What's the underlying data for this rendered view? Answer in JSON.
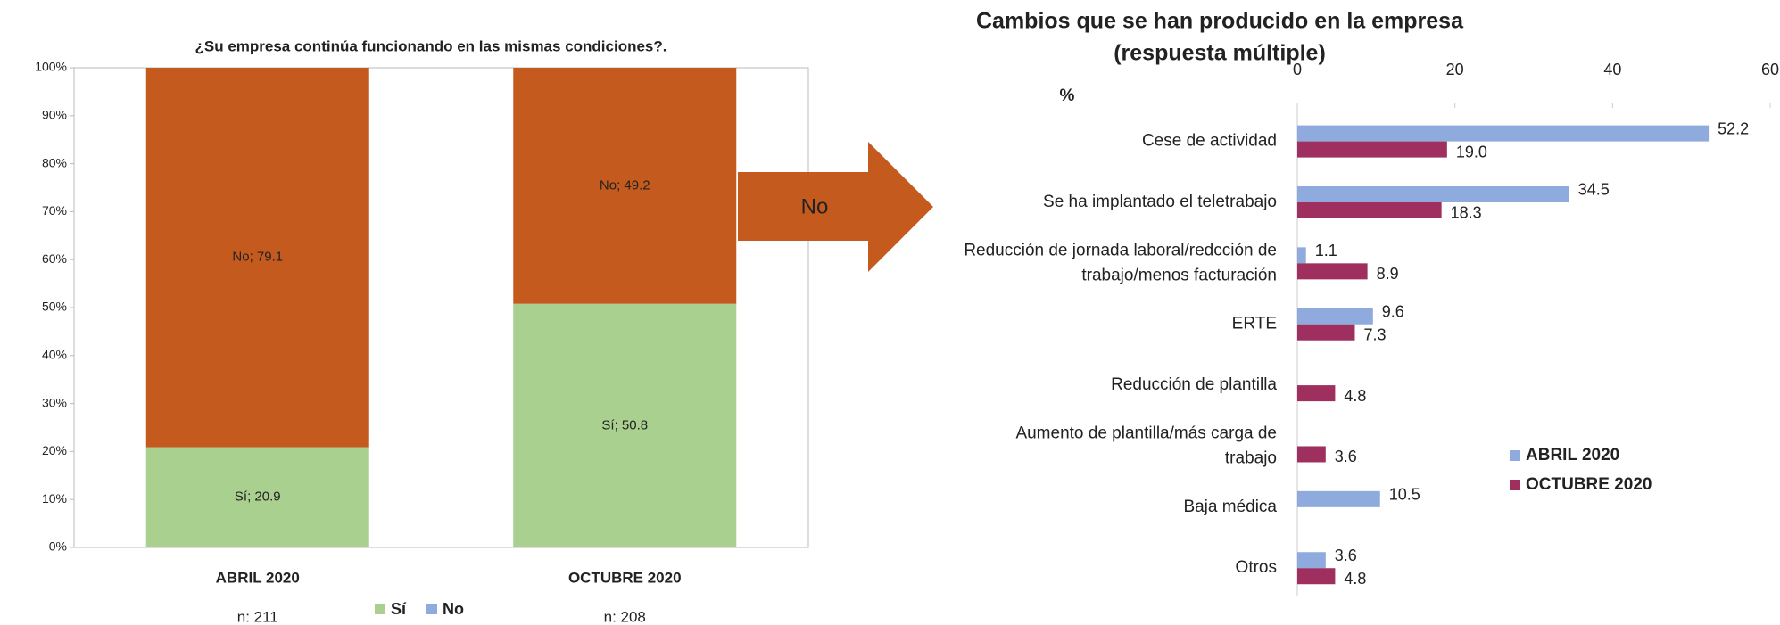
{
  "chart_data": [
    {
      "type": "stacked-bar",
      "title": "¿Su empresa continúa funcionando en las mismas condiciones?.",
      "categories": [
        "ABRIL 2020",
        "OCTUBRE 2020"
      ],
      "annotations": [
        "n: 211",
        "n: 208"
      ],
      "series": [
        {
          "name": "Sí",
          "color": "#a9d08e",
          "legend_color": "#a9d08e",
          "values": [
            20.9,
            50.8
          ],
          "value_labels": [
            "Sí; 20.9",
            "Sí; 50.8"
          ]
        },
        {
          "name": "No",
          "color": "#c55a1e",
          "legend_color": "#8faadc",
          "values": [
            79.1,
            49.2
          ],
          "value_labels": [
            "No; 79.1",
            "No; 49.2"
          ]
        }
      ],
      "ylim": [
        0,
        100
      ],
      "yticks": [
        {
          "value": 0,
          "label": "0%"
        },
        {
          "value": 10,
          "label": "10%"
        },
        {
          "value": 20,
          "label": "20%"
        },
        {
          "value": 30,
          "label": "30%"
        },
        {
          "value": 40,
          "label": "40%"
        },
        {
          "value": 50,
          "label": "50%"
        },
        {
          "value": 60,
          "label": "60%"
        },
        {
          "value": 70,
          "label": "70%"
        },
        {
          "value": 80,
          "label": "80%"
        },
        {
          "value": 90,
          "label": "90%"
        },
        {
          "value": 100,
          "label": "100%"
        }
      ],
      "arrow_label": "No",
      "arrow_color": "#c55a1e"
    },
    {
      "type": "hbar",
      "title": "Cambios que se han producido en la empresa",
      "subtitle": "(respuesta múltiple)",
      "axis_label": "%",
      "categories": [
        [
          "Cese de actividad"
        ],
        [
          "Se ha implantado el teletrabajo"
        ],
        [
          "Reducción de jornada laboral/redcción de",
          "trabajo/menos facturación"
        ],
        [
          "ERTE"
        ],
        [
          "Reducción de plantilla"
        ],
        [
          "Aumento de plantilla/más carga de",
          "trabajo"
        ],
        [
          "Baja médica"
        ],
        [
          "Otros"
        ]
      ],
      "series": [
        {
          "name": "ABRIL 2020",
          "color": "#8faadc",
          "values": [
            52.2,
            34.5,
            1.1,
            9.6,
            null,
            null,
            10.5,
            3.6
          ]
        },
        {
          "name": "OCTUBRE 2020",
          "color": "#9e2f5e",
          "values": [
            19.0,
            18.3,
            8.9,
            7.3,
            4.8,
            3.6,
            null,
            4.8
          ],
          "value_labels": [
            "19.0",
            "18.3",
            "8.9",
            "7.3",
            "4.8",
            "3.6",
            null,
            "4.8"
          ]
        }
      ],
      "xlim": [
        0,
        60
      ],
      "xticks": [
        0,
        20,
        40,
        60
      ],
      "legend": "right"
    }
  ]
}
